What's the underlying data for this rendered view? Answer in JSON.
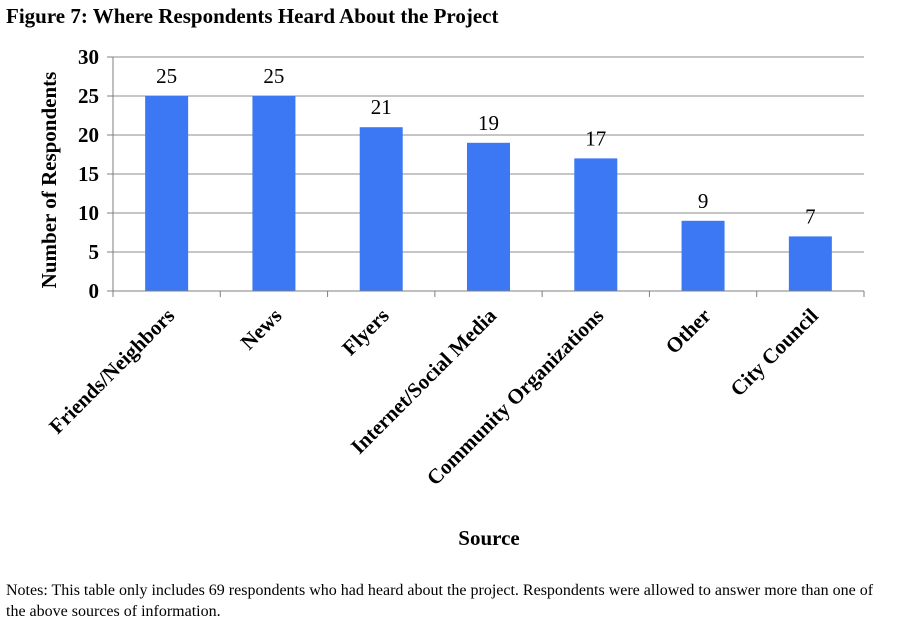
{
  "figure_title": "Figure 7: Where Respondents Heard About the Project",
  "notes": "Notes: This table only includes 69 respondents who had heard about the project. Respondents were allowed to answer more than one of the above sources of information.",
  "colors": {
    "bar": "#3c78f4",
    "grid": "#8c8c8c",
    "axis": "#7f7f7f"
  },
  "chart_data": {
    "type": "bar",
    "title": "Figure 7: Where Respondents Heard About the Project",
    "xlabel": "Source",
    "ylabel": "Number of Respondents",
    "categories": [
      "Friends/Neighbors",
      "News",
      "Flyers",
      "Internet/Social Media",
      "Community Organizations",
      "Other",
      "City Council"
    ],
    "values": [
      25,
      25,
      21,
      19,
      17,
      9,
      7
    ],
    "data_labels": [
      "25",
      "25",
      "21",
      "19",
      "17",
      "9",
      "7"
    ],
    "ylim": [
      0,
      30
    ],
    "yticks": [
      0,
      5,
      10,
      15,
      20,
      25,
      30
    ],
    "grid": true,
    "legend": "none"
  }
}
